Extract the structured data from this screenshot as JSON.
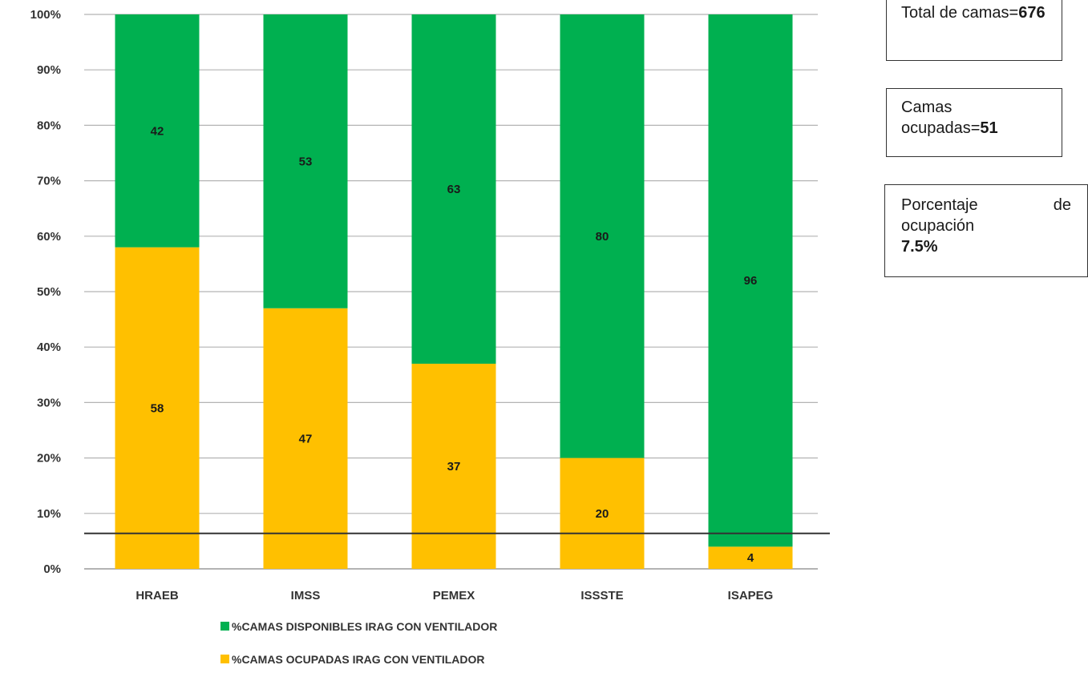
{
  "chart_data": {
    "type": "bar",
    "stacked": true,
    "title": "",
    "xlabel": "",
    "ylabel": "",
    "categories": [
      "HRAEB",
      "IMSS",
      "PEMEX",
      "ISSSTE",
      "ISAPEG"
    ],
    "series": [
      {
        "name": "%CAMAS OCUPADAS IRAG CON VENTILADOR",
        "color": "#ffc000",
        "values": [
          58,
          47,
          37,
          20,
          4
        ],
        "labels": [
          "58",
          "47",
          "37",
          "20",
          "4"
        ]
      },
      {
        "name": "%CAMAS DISPONIBLES IRAG  CON VENTILADOR",
        "color": "#00b050",
        "values": [
          42,
          53,
          63,
          80,
          96
        ],
        "labels": [
          "42",
          "53",
          "63",
          "80",
          "96"
        ]
      }
    ],
    "ylim": [
      0,
      100
    ],
    "yticks": [
      "0%",
      "10%",
      "20%",
      "30%",
      "40%",
      "50%",
      "60%",
      "70%",
      "80%",
      "90%",
      "100%"
    ],
    "grid": true,
    "reference_line": 6.4,
    "legend_position": "bottom",
    "legend": [
      {
        "label": "%CAMAS DISPONIBLES IRAG  CON VENTILADOR",
        "color": "#00b050"
      },
      {
        "label": "%CAMAS OCUPADAS IRAG CON VENTILADOR",
        "color": "#ffc000"
      }
    ]
  },
  "info_boxes": {
    "total": {
      "text": "Total de camas=",
      "value": "676"
    },
    "ocupadas": {
      "text": "Camas ocupadas=",
      "value": "51"
    },
    "porcentaje": {
      "word1": "Porcentaje",
      "word2": "de",
      "word3": "ocupación",
      "value": "7.5%"
    }
  }
}
